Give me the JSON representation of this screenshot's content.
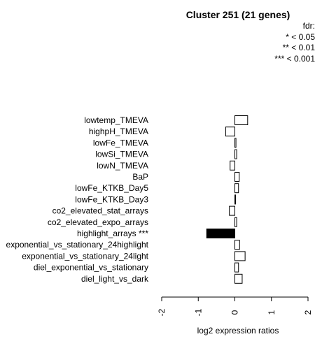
{
  "chart_data": {
    "type": "bar",
    "orientation": "horizontal",
    "title": "Cluster 251 (21 genes)",
    "xlabel": "log2 expression ratios",
    "ylabel": "",
    "xlim": [
      -2,
      2
    ],
    "xticks": [
      "-2",
      "-1",
      "0",
      "1",
      "2"
    ],
    "legend": {
      "title": "fdr:",
      "entries": [
        "* < 0.05",
        "** < 0.01",
        "*** < 0.001"
      ],
      "position": "top-right"
    },
    "categories": [
      "lowtemp_TMEVA",
      "highpH_TMEVA",
      "lowFe_TMEVA",
      "lowSi_TMEVA",
      "lowN_TMEVA",
      "BaP",
      "lowFe_KTKB_Day5",
      "lowFe_KTKB_Day3",
      "co2_elevated_stat_arrays",
      "co2_elevated_expo_arrays",
      "highlight_arrays ***",
      "exponential_vs_stationary_24highlight",
      "exponential_vs_stationary_24light",
      "diel_exponential_vs_stationary",
      "diel_light_vs_dark"
    ],
    "values": [
      0.35,
      -0.25,
      0.03,
      0.05,
      -0.13,
      0.12,
      0.1,
      0.01,
      -0.15,
      0.05,
      -0.77,
      0.13,
      0.28,
      0.1,
      0.2
    ],
    "highlight": [
      false,
      false,
      false,
      false,
      false,
      false,
      false,
      false,
      false,
      false,
      true,
      false,
      false,
      false,
      false
    ],
    "colors": {
      "default_fill": "#ffffff",
      "highlight_fill": "#000000",
      "stroke": "#000000"
    }
  }
}
